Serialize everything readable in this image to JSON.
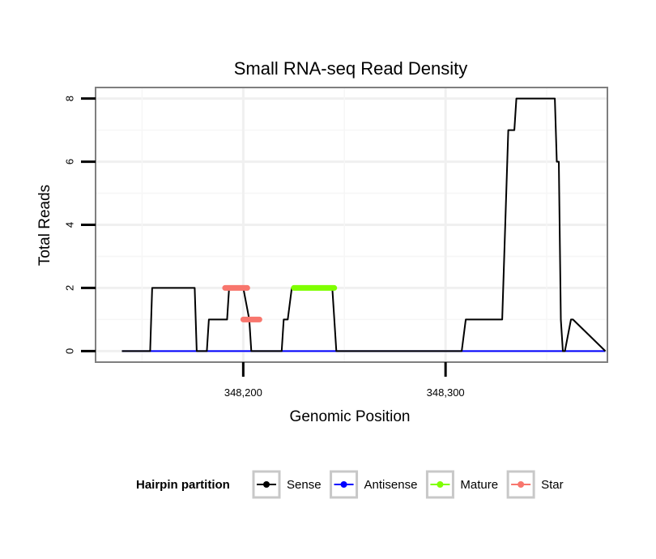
{
  "chart_data": {
    "type": "line",
    "title": "Small RNA-seq Read Density",
    "xlabel": "Genomic Position",
    "ylabel": "Total Reads",
    "xlim": [
      348127,
      348380
    ],
    "ylim": [
      -0.35,
      8.35
    ],
    "x_ticks": [
      348200,
      348300
    ],
    "x_tick_labels": [
      "348,200",
      "348,300"
    ],
    "y_ticks": [
      0,
      2,
      4,
      6,
      8
    ],
    "y_tick_labels": [
      "0",
      "2",
      "4",
      "6",
      "8"
    ],
    "grid": true,
    "series": [
      {
        "name": "Sense",
        "color": "#000000",
        "x": [
          348140,
          348154,
          348155,
          348176,
          348177,
          348182,
          348183,
          348192,
          348193,
          348200,
          348203,
          348204,
          348216,
          348219,
          348220,
          348222,
          348224,
          348244,
          348246,
          348308,
          348310,
          348328,
          348330,
          348331,
          348334,
          348335,
          348338,
          348339,
          348354,
          348355,
          348356,
          348357,
          348358,
          348359,
          348362,
          348363,
          348379
        ],
        "y": [
          0,
          0,
          2,
          2,
          0,
          0,
          1,
          1,
          2,
          2,
          1,
          0,
          0,
          0,
          1,
          1,
          2,
          2,
          0,
          0,
          1,
          1,
          5,
          7,
          7,
          8,
          8,
          8,
          8,
          6,
          6,
          1,
          0,
          0,
          1,
          1,
          0
        ]
      },
      {
        "name": "Antisense",
        "color": "#0000FF",
        "x": [
          348140,
          348379
        ],
        "y": [
          0,
          0
        ]
      }
    ],
    "segments": [
      {
        "name": "Mature",
        "color": "#7FFF00",
        "x": [
          348225,
          348245
        ],
        "y": 2
      },
      {
        "name": "Star",
        "color": "#F8766D",
        "x": [
          348191,
          348202
        ],
        "y": 2
      },
      {
        "name": "Star",
        "color": "#F8766D",
        "x": [
          348200,
          348208
        ],
        "y": 1
      }
    ],
    "legend": {
      "title": "Hairpin partition",
      "position": "bottom",
      "entries": [
        {
          "label": "Sense",
          "color": "#000000"
        },
        {
          "label": "Antisense",
          "color": "#0000FF"
        },
        {
          "label": "Mature",
          "color": "#7FFF00"
        },
        {
          "label": "Star",
          "color": "#F8766D"
        }
      ]
    }
  }
}
